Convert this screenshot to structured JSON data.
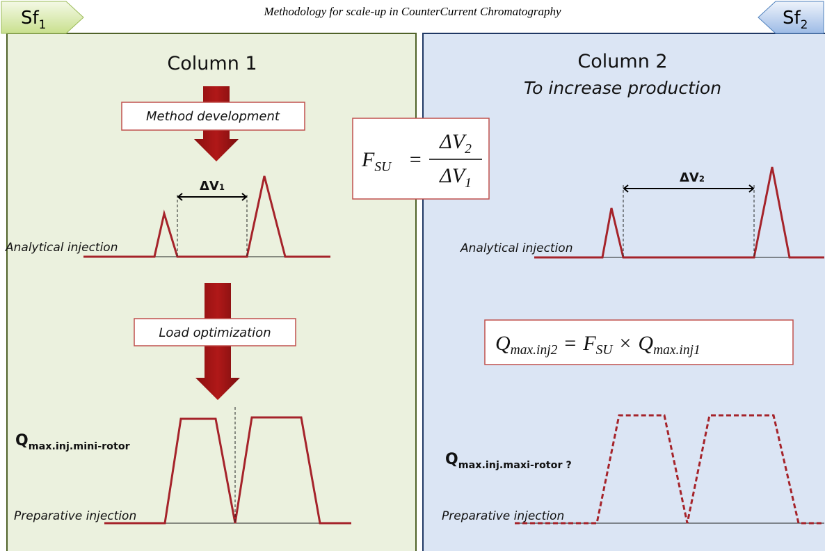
{
  "title": "Methodology for scale-up in CounterCurrent Chromatography",
  "tags": [
    {
      "base": "Sf",
      "sub": "1"
    },
    {
      "base": "Sf",
      "sub": "2"
    }
  ],
  "column1": {
    "title": "Column 1",
    "step1": "Method development",
    "delta": {
      "base": "ΔV",
      "sub": "1"
    },
    "analytical": "Analytical injection",
    "step2": "Load optimization",
    "q": {
      "base": "Q",
      "sub": "max.inj.mini-rotor"
    },
    "preparative": "Preparative injection"
  },
  "column2": {
    "title": "Column 2",
    "subtitle": "To increase production",
    "delta": {
      "base": "ΔV",
      "sub": "2"
    },
    "analytical": "Analytical injection",
    "q": {
      "base": "Q",
      "sub": "max.inj.maxi-rotor ?"
    },
    "preparative": "Preparative injection"
  },
  "formula1": {
    "lhs": {
      "base": "F",
      "sub": "SU"
    },
    "op": "=",
    "num": {
      "base": "ΔV",
      "sub": "2"
    },
    "den": {
      "base": "ΔV",
      "sub": "1"
    }
  },
  "formula2": {
    "lhs": {
      "base": "Q",
      "sub": "max.inj2"
    },
    "op1": "=",
    "f": {
      "base": "F",
      "sub": "SU"
    },
    "op2": "×",
    "q": {
      "base": "Q",
      "sub": "max.inj1"
    }
  }
}
